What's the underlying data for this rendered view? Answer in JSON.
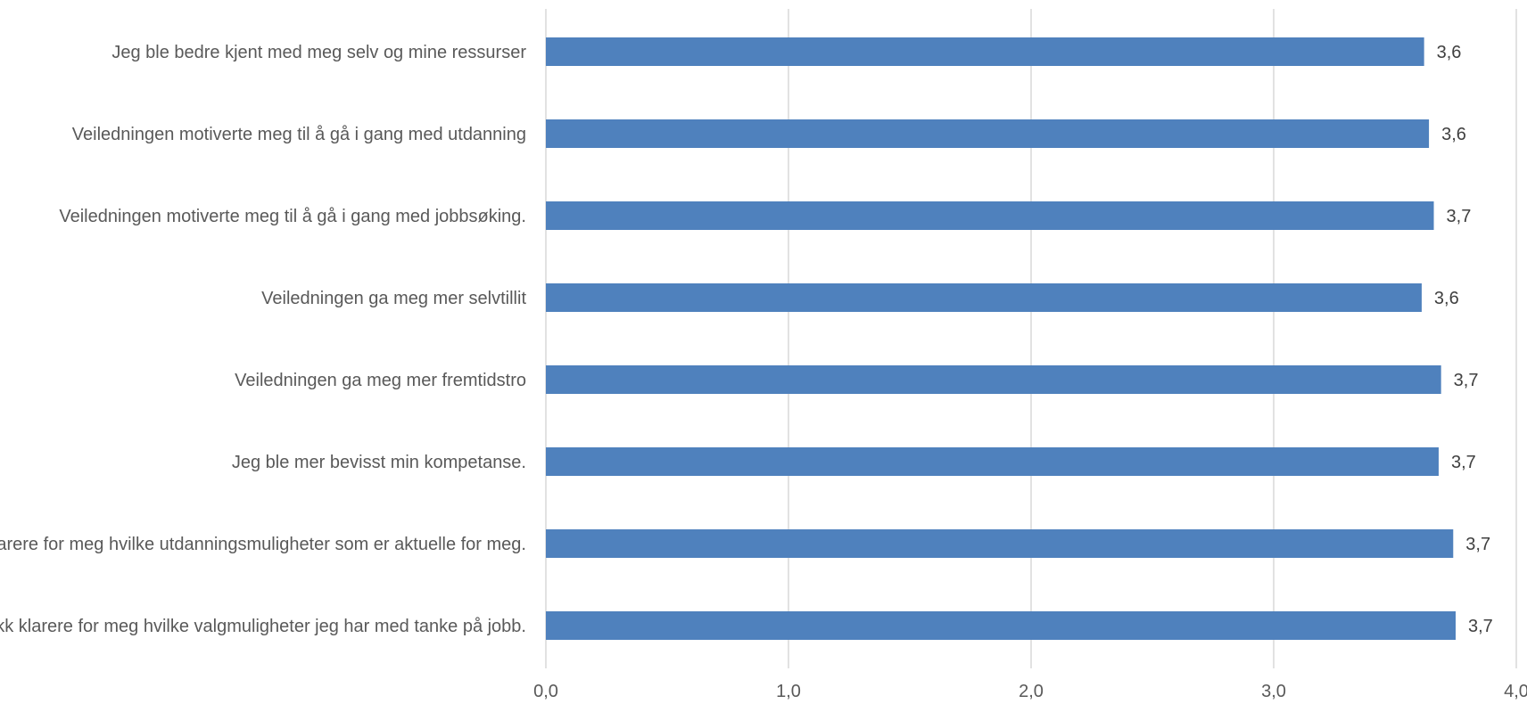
{
  "chart_data": {
    "type": "bar",
    "orientation": "horizontal",
    "categories": [
      "Jeg ble bedre kjent med meg selv og mine ressurser",
      "Veiledningen motiverte meg til å gå i gang med utdanning",
      "Veiledningen motiverte meg til å gå i gang med jobbsøking.",
      "Veiledningen ga meg mer selvtillit",
      "Veiledningen ga meg mer fremtidstro",
      "Jeg ble mer bevisst min kompetanse.",
      "Jeg fikk klarere for meg hvilke utdanningsmuligheter som er aktuelle for meg.",
      "Jeg fikk klarere for meg hvilke valgmuligheter jeg har med tanke på jobb."
    ],
    "values": [
      3.62,
      3.64,
      3.66,
      3.61,
      3.69,
      3.68,
      3.74,
      3.75
    ],
    "data_labels": [
      "3,6",
      "3,6",
      "3,7",
      "3,6",
      "3,7",
      "3,7",
      "3,7",
      "3,7"
    ],
    "xlim": [
      0,
      4
    ],
    "ticks": [
      0,
      1,
      2,
      3,
      4
    ],
    "tick_labels": [
      "0,0",
      "1,0",
      "2,0",
      "3,0",
      "4,0"
    ],
    "grid": "vertical",
    "bar_color": "#4f81bd",
    "title": "",
    "xlabel": "",
    "ylabel": ""
  }
}
